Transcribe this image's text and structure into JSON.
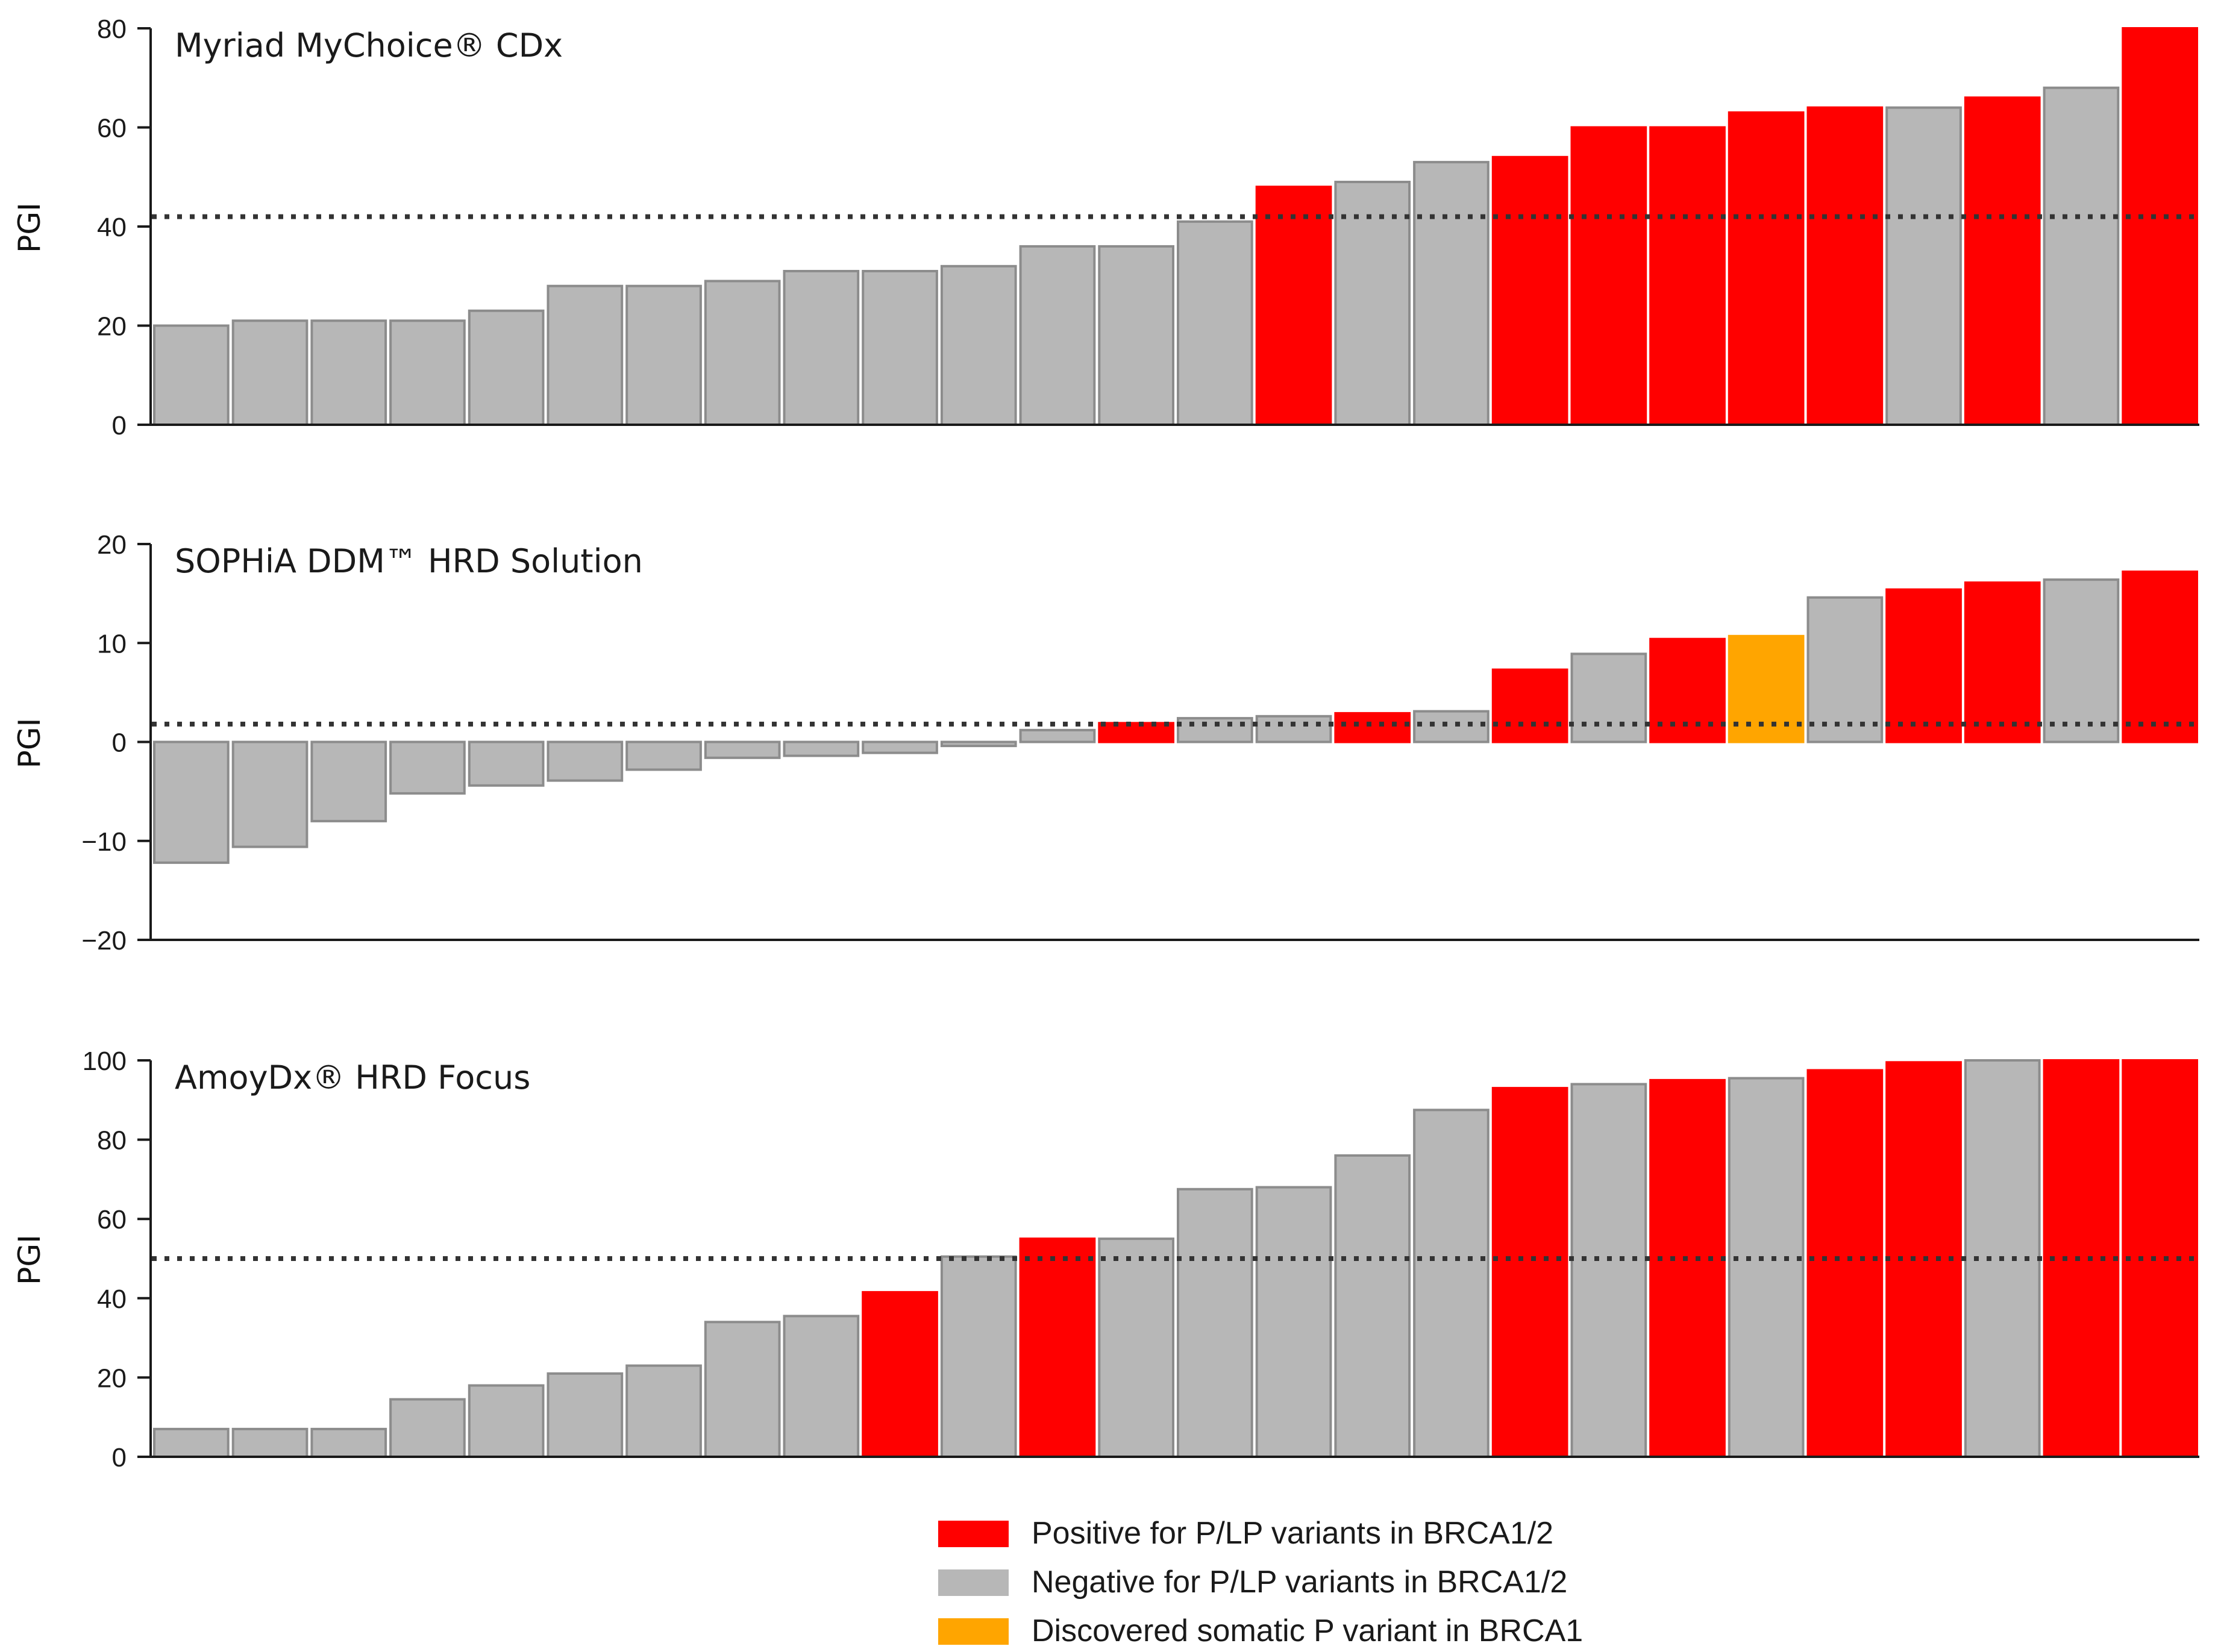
{
  "colors": {
    "positive": "#ff0000",
    "negative": "#b7b7b7",
    "somatic": "#ffa500",
    "bar_edge": "#8c8c8c",
    "threshold": "#333333",
    "axis": "#1a1a1a"
  },
  "chart_data": [
    {
      "type": "bar",
      "title": "Myriad MyChoice® CDx",
      "ylabel": "PGI",
      "xlabel": "",
      "ylim": [
        0,
        80
      ],
      "yticks": [
        0,
        20,
        40,
        60,
        80
      ],
      "ytick_labels": [
        "0",
        "20",
        "40",
        "60",
        "80"
      ],
      "threshold": 42,
      "values": [
        20,
        21,
        21,
        21,
        23,
        28,
        28,
        29,
        31,
        31,
        32,
        36,
        36,
        41,
        48,
        49,
        53,
        54,
        60,
        60,
        63,
        64,
        64,
        66,
        68,
        80
      ],
      "status": [
        "negative",
        "negative",
        "negative",
        "negative",
        "negative",
        "negative",
        "negative",
        "negative",
        "negative",
        "negative",
        "negative",
        "negative",
        "negative",
        "negative",
        "positive",
        "negative",
        "negative",
        "positive",
        "positive",
        "positive",
        "positive",
        "positive",
        "negative",
        "positive",
        "negative",
        "positive"
      ]
    },
    {
      "type": "bar",
      "title": "SOPHiA DDM™ HRD Solution",
      "ylabel": "PGI",
      "xlabel": "",
      "ylim": [
        -20,
        20
      ],
      "yticks": [
        -20,
        -10,
        0,
        10,
        20
      ],
      "ytick_labels": [
        "−20",
        "−10",
        "0",
        "10",
        "20"
      ],
      "threshold": 1.8,
      "values": [
        -12.2,
        -10.6,
        -8,
        -5.2,
        -4.4,
        -3.9,
        -2.8,
        -1.6,
        -1.4,
        -1.1,
        -0.4,
        1.2,
        1.9,
        2.4,
        2.6,
        2.9,
        3.1,
        7.3,
        8.9,
        10.4,
        10.7,
        14.6,
        15.4,
        16.1,
        16.4,
        17.2
      ],
      "status": [
        "negative",
        "negative",
        "negative",
        "negative",
        "negative",
        "negative",
        "negative",
        "negative",
        "negative",
        "negative",
        "negative",
        "negative",
        "positive",
        "negative",
        "negative",
        "positive",
        "negative",
        "positive",
        "negative",
        "positive",
        "somatic",
        "negative",
        "positive",
        "positive",
        "negative",
        "positive"
      ]
    },
    {
      "type": "bar",
      "title": "AmoyDx® HRD Focus",
      "ylabel": "PGI",
      "xlabel": "",
      "ylim": [
        0,
        100
      ],
      "yticks": [
        0,
        20,
        40,
        60,
        80,
        100
      ],
      "ytick_labels": [
        "0",
        "20",
        "40",
        "60",
        "80",
        "100"
      ],
      "threshold": 50,
      "values": [
        7,
        7,
        7,
        14.5,
        18,
        21,
        23,
        34,
        35.5,
        41.5,
        50.5,
        55,
        55,
        67.5,
        68,
        76,
        87.5,
        93,
        94,
        95,
        95.5,
        97.5,
        99.5,
        100,
        100,
        100
      ],
      "status": [
        "negative",
        "negative",
        "negative",
        "negative",
        "negative",
        "negative",
        "negative",
        "negative",
        "negative",
        "positive",
        "negative",
        "positive",
        "negative",
        "negative",
        "negative",
        "negative",
        "negative",
        "positive",
        "negative",
        "positive",
        "negative",
        "positive",
        "positive",
        "negative",
        "positive",
        "positive"
      ]
    }
  ],
  "legend": [
    {
      "key": "positive",
      "label": "Positive for P/LP variants in BRCA1/2"
    },
    {
      "key": "negative",
      "label": "Negative for P/LP variants in BRCA1/2"
    },
    {
      "key": "somatic",
      "label": "Discovered somatic P variant in BRCA1"
    }
  ]
}
